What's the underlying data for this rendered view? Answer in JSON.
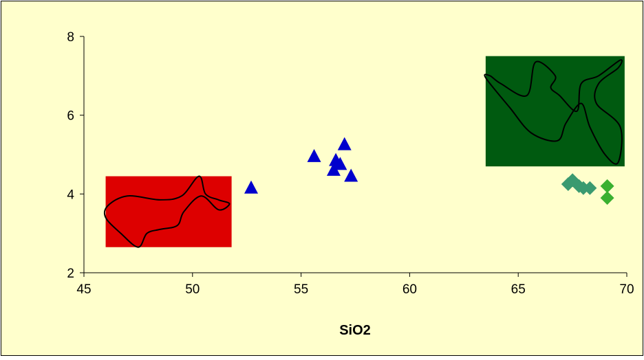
{
  "chart_data": {
    "type": "scatter",
    "title": "",
    "xlabel": "SiO2",
    "ylabel": "",
    "xlim": [
      45,
      70
    ],
    "ylim": [
      2,
      8
    ],
    "xticks": [
      "45",
      "50",
      "55",
      "60",
      "65",
      "70"
    ],
    "yticks": [
      "2",
      "4",
      "6",
      "8"
    ],
    "grid": false,
    "legend": "none",
    "colors": {
      "chart_background": "#FFFFCC",
      "frame_background": "#FFFFCC",
      "red_field": "#DD0000",
      "green_field": "#005A10",
      "triangles": "#0000CC",
      "diamonds_teal": "#3A9A70",
      "diamonds_green": "#3AB030",
      "outline": "#000000"
    },
    "fields": [
      {
        "color": "#DD0000",
        "x": [
          46.0,
          51.8
        ],
        "y": [
          2.65,
          4.45
        ]
      },
      {
        "color": "#005A10",
        "x": [
          63.5,
          69.9
        ],
        "y": [
          4.7,
          7.5
        ]
      }
    ],
    "series": [
      {
        "marker": "triangle",
        "color": "#0000CC",
        "points": [
          [
            52.7,
            4.15
          ],
          [
            55.6,
            4.95
          ],
          [
            56.5,
            4.6
          ],
          [
            56.6,
            4.85
          ],
          [
            56.8,
            4.75
          ],
          [
            57.0,
            5.25
          ],
          [
            57.3,
            4.45
          ]
        ]
      },
      {
        "marker": "diamond",
        "color": "#3A9A70",
        "points": [
          [
            67.3,
            4.25
          ],
          [
            67.5,
            4.35
          ],
          [
            67.8,
            4.2
          ],
          [
            68.0,
            4.15
          ],
          [
            68.3,
            4.15
          ]
        ]
      },
      {
        "marker": "diamond",
        "color": "#3AB030",
        "points": [
          [
            69.1,
            4.2
          ],
          [
            69.1,
            3.9
          ]
        ]
      }
    ],
    "outlines": [
      [
        [
          46.1,
          3.7
        ],
        [
          47.0,
          3.95
        ],
        [
          48.5,
          3.85
        ],
        [
          49.5,
          3.95
        ],
        [
          50.3,
          4.45
        ],
        [
          50.6,
          4.0
        ],
        [
          51.2,
          3.85
        ],
        [
          51.7,
          3.75
        ],
        [
          51.2,
          3.6
        ],
        [
          50.4,
          3.95
        ],
        [
          49.6,
          3.55
        ],
        [
          49.3,
          3.2
        ],
        [
          48.5,
          3.1
        ],
        [
          47.9,
          3.0
        ],
        [
          47.5,
          2.65
        ],
        [
          46.7,
          3.0
        ],
        [
          46.0,
          3.4
        ]
      ],
      [
        [
          63.5,
          6.95
        ],
        [
          64.6,
          6.2
        ],
        [
          65.6,
          5.55
        ],
        [
          66.8,
          5.35
        ],
        [
          67.2,
          5.8
        ],
        [
          67.9,
          6.3
        ],
        [
          68.3,
          5.7
        ],
        [
          69.0,
          5.0
        ],
        [
          69.6,
          4.8
        ],
        [
          69.7,
          5.7
        ],
        [
          68.6,
          6.3
        ],
        [
          68.7,
          6.8
        ],
        [
          69.6,
          7.2
        ],
        [
          69.7,
          7.4
        ],
        [
          68.7,
          7.0
        ],
        [
          67.9,
          6.8
        ],
        [
          67.7,
          6.1
        ],
        [
          66.9,
          6.5
        ],
        [
          66.5,
          6.7
        ],
        [
          66.7,
          7.0
        ],
        [
          65.8,
          7.35
        ],
        [
          65.4,
          6.5
        ],
        [
          64.2,
          6.8
        ],
        [
          63.7,
          7.0
        ]
      ]
    ]
  }
}
